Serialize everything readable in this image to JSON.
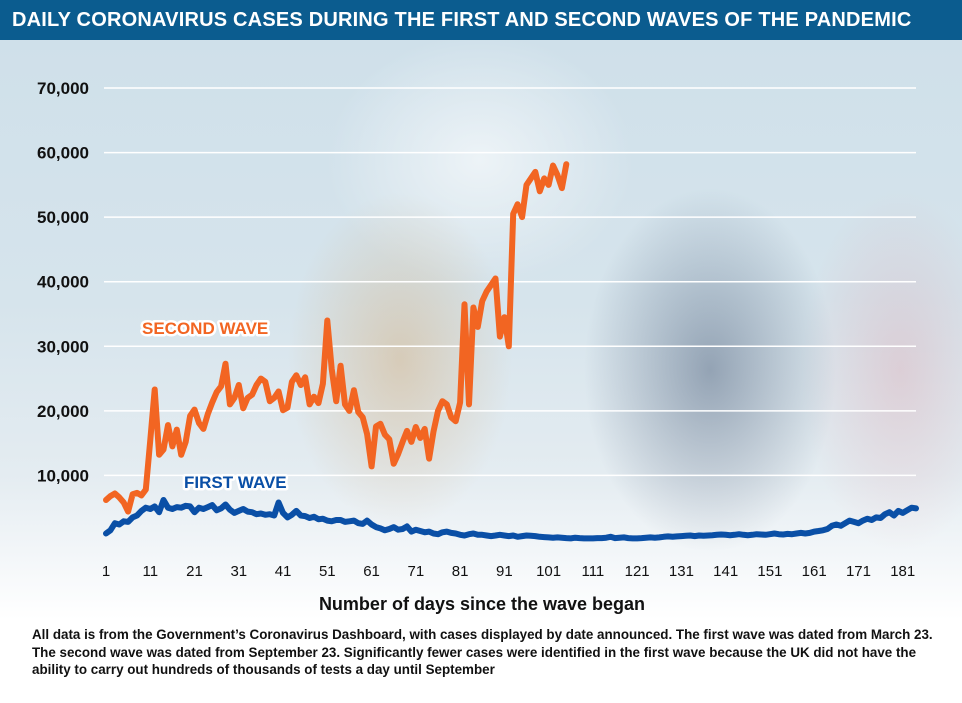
{
  "title": "DAILY CORONAVIRUS CASES DURING THE FIRST AND SECOND WAVES OF THE PANDEMIC",
  "footnote": "All data is from the Government’s Coronavirus Dashboard, with cases displayed by date announced. The first wave was dated from March 23. The second wave was dated from September 23. Significantly fewer cases were identified in the first wave because the UK did not have the ability to carry out hundreds of thousands of tests a day until September",
  "colors": {
    "second_wave": "#f26522",
    "first_wave": "#0a4fa6",
    "title_bg": "#0b5c8f"
  },
  "chart_data": {
    "type": "line",
    "title": "DAILY CORONAVIRUS CASES DURING THE FIRST AND SECOND WAVES OF THE PANDEMIC",
    "xlabel": "Number of days since the wave began",
    "ylabel": "",
    "xlim": [
      1,
      184
    ],
    "ylim": [
      0,
      70000
    ],
    "yticks": [
      10000,
      20000,
      30000,
      40000,
      50000,
      60000,
      70000
    ],
    "ytick_labels": [
      "10,000",
      "20,000",
      "30,000",
      "40,000",
      "50,000",
      "60,000",
      "70,000"
    ],
    "xticks": [
      1,
      11,
      21,
      31,
      41,
      51,
      61,
      71,
      81,
      91,
      101,
      111,
      121,
      131,
      141,
      151,
      161,
      171,
      181
    ],
    "xtick_labels": [
      "1",
      "11",
      "21",
      "31",
      "41",
      "51",
      "61",
      "71",
      "81",
      "91",
      "101",
      "111",
      "121",
      "131",
      "141",
      "151",
      "161",
      "171",
      "181"
    ],
    "grid": true,
    "series": [
      {
        "name": "SECOND WAVE",
        "x": [
          1,
          2,
          3,
          4,
          5,
          6,
          7,
          8,
          9,
          10,
          11,
          12,
          13,
          14,
          15,
          16,
          17,
          18,
          19,
          20,
          21,
          22,
          23,
          24,
          25,
          26,
          27,
          28,
          29,
          30,
          31,
          32,
          33,
          34,
          35,
          36,
          37,
          38,
          39,
          40,
          41,
          42,
          43,
          44,
          45,
          46,
          47,
          48,
          49,
          50,
          51,
          52,
          53,
          54,
          55,
          56,
          57,
          58,
          59,
          60,
          61,
          62,
          63,
          64,
          65,
          66,
          67,
          68,
          69,
          70,
          71,
          72,
          73,
          74,
          75,
          76,
          77,
          78,
          79,
          80,
          81,
          82,
          83,
          84,
          85,
          86,
          87,
          88,
          89,
          90,
          91,
          92,
          93,
          94,
          95,
          96,
          97,
          98,
          99,
          100,
          101,
          102,
          103,
          104,
          105
        ],
        "values": [
          6200,
          6800,
          7200,
          6600,
          5800,
          4400,
          7100,
          7300,
          6900,
          7800,
          15500,
          23300,
          13200,
          14000,
          17800,
          14500,
          17100,
          13200,
          15200,
          19200,
          20200,
          18100,
          17200,
          19500,
          21300,
          22900,
          23800,
          27300,
          21000,
          22000,
          24000,
          20400,
          22000,
          22500,
          24000,
          25000,
          24500,
          21500,
          22000,
          23000,
          20100,
          20500,
          24500,
          25500,
          24000,
          25200,
          21000,
          22200,
          21200,
          24200,
          34000,
          26500,
          21500,
          27000,
          21000,
          20000,
          23200,
          19800,
          19000,
          16400,
          11400,
          17600,
          18000,
          16300,
          15600,
          11800,
          13300,
          15200,
          16900,
          15200,
          17500,
          15800,
          17200,
          12600,
          16800,
          20000,
          21500,
          21000,
          19000,
          18400,
          21300,
          36500,
          21000,
          36000,
          33000,
          37000,
          38500,
          39500,
          40500,
          31500,
          34500,
          30000,
          50500,
          52000,
          50000,
          55000,
          56000,
          57000,
          54000,
          56000,
          55000,
          58000,
          56500,
          54500,
          58200
        ],
        "color": "#f26522"
      },
      {
        "name": "FIRST WAVE",
        "x": [
          1,
          2,
          3,
          4,
          5,
          6,
          7,
          8,
          9,
          10,
          11,
          12,
          13,
          14,
          15,
          16,
          17,
          18,
          19,
          20,
          21,
          22,
          23,
          24,
          25,
          26,
          27,
          28,
          29,
          30,
          31,
          32,
          33,
          34,
          35,
          36,
          37,
          38,
          39,
          40,
          41,
          42,
          43,
          44,
          45,
          46,
          47,
          48,
          49,
          50,
          51,
          52,
          53,
          54,
          55,
          56,
          57,
          58,
          59,
          60,
          61,
          62,
          63,
          64,
          65,
          66,
          67,
          68,
          69,
          70,
          71,
          72,
          73,
          74,
          75,
          76,
          77,
          78,
          79,
          80,
          81,
          82,
          83,
          84,
          85,
          86,
          87,
          88,
          89,
          90,
          91,
          92,
          93,
          94,
          95,
          96,
          97,
          98,
          99,
          100,
          101,
          102,
          103,
          104,
          105,
          106,
          107,
          108,
          109,
          110,
          111,
          112,
          113,
          114,
          115,
          116,
          117,
          118,
          119,
          120,
          121,
          122,
          123,
          124,
          125,
          126,
          127,
          128,
          129,
          130,
          131,
          132,
          133,
          134,
          135,
          136,
          137,
          138,
          139,
          140,
          141,
          142,
          143,
          144,
          145,
          146,
          147,
          148,
          149,
          150,
          151,
          152,
          153,
          154,
          155,
          156,
          157,
          158,
          159,
          160,
          161,
          162,
          163,
          164,
          165,
          166,
          167,
          168,
          169,
          170,
          171,
          172,
          173,
          174,
          175,
          176,
          177,
          178,
          179,
          180,
          181,
          182,
          183,
          184
        ],
        "values": [
          1000,
          1500,
          2600,
          2400,
          2900,
          2800,
          3500,
          3800,
          4500,
          5000,
          4800,
          5200,
          4300,
          6200,
          5000,
          4800,
          5100,
          5000,
          5300,
          5200,
          4300,
          5000,
          4800,
          5100,
          5400,
          4600,
          4900,
          5500,
          4700,
          4200,
          4500,
          4800,
          4400,
          4300,
          4000,
          4100,
          3900,
          4000,
          3800,
          5800,
          4200,
          3500,
          3900,
          4500,
          3800,
          3700,
          3400,
          3600,
          3200,
          3300,
          3000,
          2900,
          3100,
          3100,
          2800,
          2900,
          3000,
          2600,
          2500,
          3000,
          2400,
          2000,
          1800,
          1500,
          1700,
          2000,
          1600,
          1700,
          2100,
          1300,
          1600,
          1400,
          1200,
          1300,
          1000,
          900,
          1200,
          1300,
          1100,
          1000,
          800,
          700,
          900,
          1000,
          800,
          800,
          700,
          600,
          700,
          800,
          700,
          600,
          700,
          500,
          600,
          700,
          650,
          600,
          500,
          450,
          400,
          350,
          400,
          350,
          300,
          250,
          350,
          300,
          250,
          250,
          250,
          300,
          300,
          350,
          500,
          300,
          350,
          400,
          300,
          250,
          250,
          300,
          350,
          400,
          350,
          400,
          500,
          550,
          500,
          550,
          600,
          650,
          700,
          600,
          700,
          650,
          700,
          750,
          800,
          850,
          800,
          750,
          800,
          900,
          800,
          750,
          800,
          900,
          850,
          800,
          900,
          1000,
          900,
          850,
          950,
          900,
          1000,
          1100,
          1000,
          1100,
          1300,
          1400,
          1500,
          1700,
          2200,
          2400,
          2200,
          2600,
          3000,
          2800,
          2600,
          3000,
          3300,
          3100,
          3500,
          3400,
          4000,
          4300,
          3800,
          4500,
          4200,
          4600,
          5000,
          4900
        ],
        "color": "#0a4fa6"
      }
    ]
  }
}
